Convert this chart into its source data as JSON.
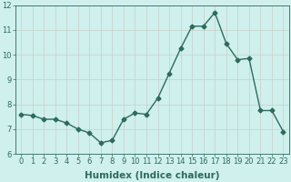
{
  "x": [
    0,
    1,
    2,
    3,
    4,
    5,
    6,
    7,
    8,
    9,
    10,
    11,
    12,
    13,
    14,
    15,
    16,
    17,
    18,
    19,
    20,
    21,
    22,
    23
  ],
  "y": [
    7.6,
    7.55,
    7.4,
    7.4,
    7.25,
    7.0,
    6.85,
    6.45,
    6.55,
    7.4,
    7.65,
    7.6,
    8.25,
    9.25,
    10.25,
    11.15,
    11.15,
    11.7,
    10.45,
    9.8,
    9.85,
    7.75,
    7.75,
    6.9
  ],
  "line_color": "#2d6b5e",
  "marker": "D",
  "markersize": 2.5,
  "linewidth": 1.0,
  "xlabel": "Humidex (Indice chaleur)",
  "xlim": [
    -0.5,
    23.5
  ],
  "ylim": [
    6,
    12
  ],
  "yticks": [
    6,
    7,
    8,
    9,
    10,
    11,
    12
  ],
  "xtick_labels": [
    "0",
    "1",
    "2",
    "3",
    "4",
    "5",
    "6",
    "7",
    "8",
    "9",
    "10",
    "11",
    "12",
    "13",
    "14",
    "15",
    "16",
    "17",
    "18",
    "19",
    "20",
    "21",
    "22",
    "23"
  ],
  "bg_color": "#cff0ed",
  "grid_color": "#c8cfc8",
  "tick_color": "#2d6b5e",
  "label_color": "#2d6b5e",
  "xlabel_fontsize": 7.5,
  "tick_fontsize": 6.0
}
